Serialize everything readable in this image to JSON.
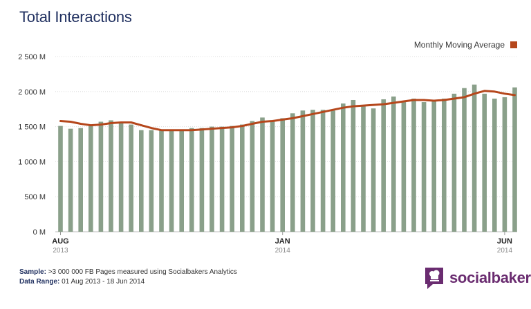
{
  "title": "Total Interactions",
  "legend": {
    "label": "Monthly Moving Average",
    "color": "#b5471c"
  },
  "colors": {
    "bar": "#8aa08a",
    "line": "#b5471c",
    "grid": "#dddddd",
    "logo": "#6a2c70"
  },
  "footer": {
    "sample_label": "Sample:",
    "sample_text": ">3 000 000 FB Pages measured using Socialbakers Analytics",
    "range_label": "Data Range:",
    "range_text": "01 Aug 2013 - 18 Jun 2014"
  },
  "logo": {
    "text": "socialbakers",
    "icon": "socialbakers-chef-icon"
  },
  "chart_data": {
    "type": "bar",
    "ylim": [
      0,
      2500
    ],
    "y_ticks": [
      {
        "value": 0,
        "label": "0 M"
      },
      {
        "value": 500,
        "label": "500 M"
      },
      {
        "value": 1000,
        "label": "1 000 M"
      },
      {
        "value": 1500,
        "label": "1 500 M"
      },
      {
        "value": 2000,
        "label": "2 000 M"
      },
      {
        "value": 2500,
        "label": "2 500 M"
      }
    ],
    "x_ticks": [
      {
        "index": 0,
        "month": "AUG",
        "year": "2013"
      },
      {
        "index": 22,
        "month": "JAN",
        "year": "2014"
      },
      {
        "index": 44,
        "month": "JUN",
        "year": "2014"
      }
    ],
    "grid": true,
    "legend_position": "top-right",
    "series": [
      {
        "kind": "bar",
        "values": [
          1510,
          1470,
          1480,
          1530,
          1570,
          1590,
          1570,
          1530,
          1450,
          1450,
          1460,
          1460,
          1460,
          1480,
          1480,
          1500,
          1500,
          1510,
          1530,
          1580,
          1630,
          1590,
          1620,
          1690,
          1730,
          1740,
          1740,
          1730,
          1830,
          1880,
          1790,
          1760,
          1890,
          1930,
          1850,
          1900,
          1850,
          1870,
          1900,
          1970,
          2050,
          2100,
          1970,
          1900,
          1920,
          2060
        ]
      },
      {
        "kind": "line",
        "name": "Monthly Moving Average",
        "values": [
          1580,
          1570,
          1540,
          1520,
          1530,
          1550,
          1560,
          1560,
          1520,
          1480,
          1450,
          1450,
          1450,
          1450,
          1460,
          1470,
          1480,
          1490,
          1510,
          1540,
          1570,
          1580,
          1600,
          1620,
          1650,
          1680,
          1710,
          1740,
          1770,
          1790,
          1800,
          1810,
          1820,
          1840,
          1860,
          1880,
          1880,
          1870,
          1880,
          1900,
          1920,
          1970,
          2010,
          2000,
          1970,
          1950
        ]
      }
    ]
  }
}
